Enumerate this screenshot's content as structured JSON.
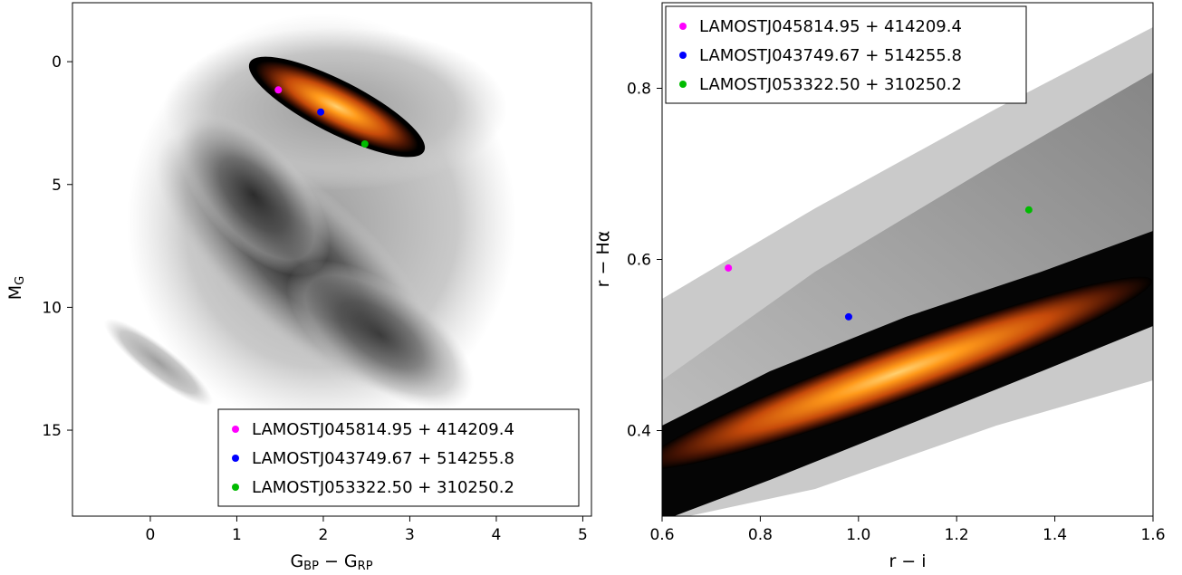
{
  "chart_data": [
    {
      "type": "scatter",
      "panel": "left",
      "title": "",
      "xlabel": {
        "main": "G",
        "sub1": "BP",
        "mid": " − G",
        "sub2": "RP"
      },
      "ylabel": {
        "main": "M",
        "sub": "G"
      },
      "xlim": [
        -0.9,
        5.1
      ],
      "ylim": [
        18.5,
        -2.4
      ],
      "yinverted": true,
      "xticks": [
        0,
        1,
        2,
        3,
        4,
        5
      ],
      "yticks": [
        0,
        5,
        10,
        15
      ],
      "grid": false,
      "legend_position": "lower-right",
      "background": "grey density of field stars (main sequence, giant branch, white dwarf sequence)",
      "highlight": "orange heat-map density of selected sample along giant branch",
      "series": [
        {
          "name": "LAMOSTJ045814.95 + 414209.4",
          "color": "#ff00ff",
          "x": [
            1.48
          ],
          "y": [
            1.15
          ]
        },
        {
          "name": "LAMOSTJ043749.67 + 514255.8",
          "color": "#0000ff",
          "x": [
            1.97
          ],
          "y": [
            2.05
          ]
        },
        {
          "name": "LAMOSTJ053322.50 + 310250.2",
          "color": "#00bb00",
          "x": [
            2.48
          ],
          "y": [
            3.35
          ]
        }
      ]
    },
    {
      "type": "scatter",
      "panel": "right",
      "title": "",
      "xlabel": "r − i",
      "ylabel": "r − Hα",
      "xlim": [
        0.6,
        1.6
      ],
      "ylim": [
        0.3,
        0.9
      ],
      "xticks": [
        "0.6",
        "0.8",
        "1.0",
        "1.2",
        "1.4",
        "1.6"
      ],
      "yticks": [
        "0.4",
        "0.6",
        "0.8"
      ],
      "grid": false,
      "legend_position": "upper-left",
      "background": "grey density band and black/orange density of main locus",
      "series": [
        {
          "name": "LAMOSTJ045814.95 + 414209.4",
          "color": "#ff00ff",
          "x": [
            0.735
          ],
          "y": [
            0.59
          ]
        },
        {
          "name": "LAMOSTJ043749.67 + 514255.8",
          "color": "#0000ff",
          "x": [
            0.98
          ],
          "y": [
            0.533
          ]
        },
        {
          "name": "LAMOSTJ053322.50 + 310250.2",
          "color": "#00bb00",
          "x": [
            1.347
          ],
          "y": [
            0.658
          ]
        }
      ]
    }
  ]
}
